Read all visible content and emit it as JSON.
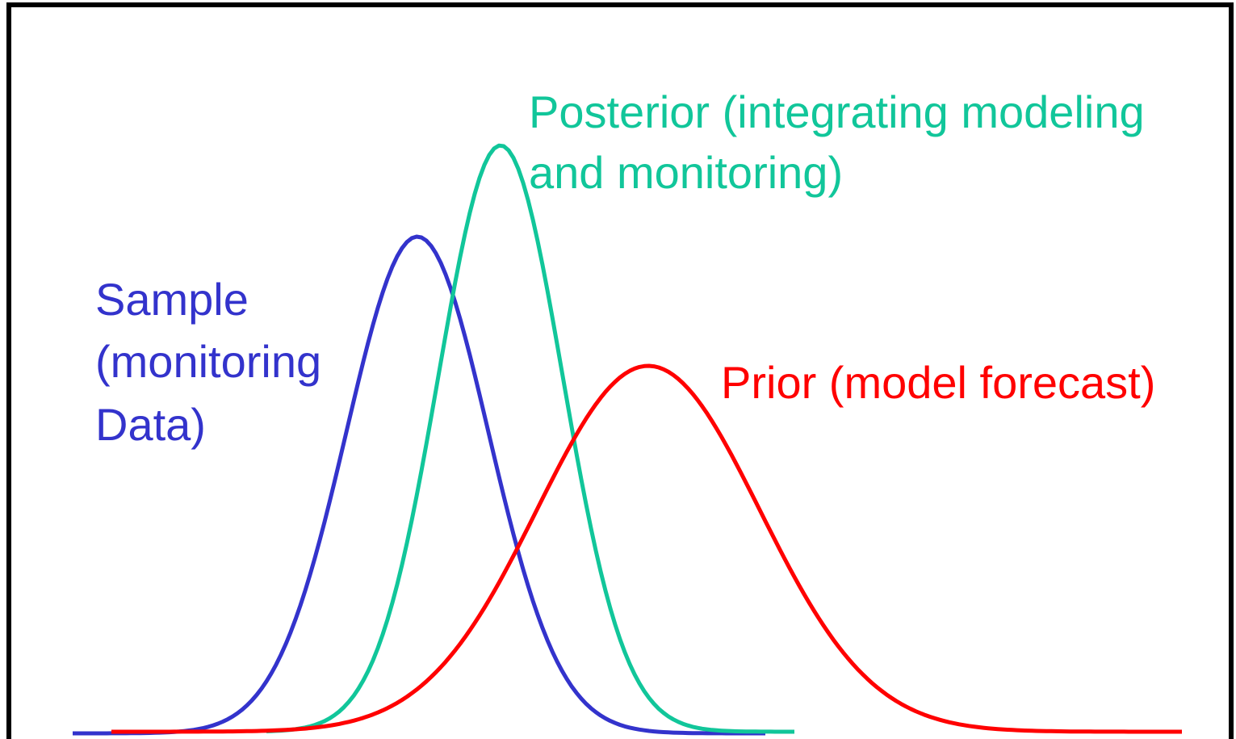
{
  "labels": {
    "posterior": [
      "Posterior (integrating modeling",
      "and monitoring)"
    ],
    "sample": [
      "Sample",
      "(monitoring",
      "Data)"
    ],
    "prior": [
      "Prior (model forecast)"
    ]
  }
}
